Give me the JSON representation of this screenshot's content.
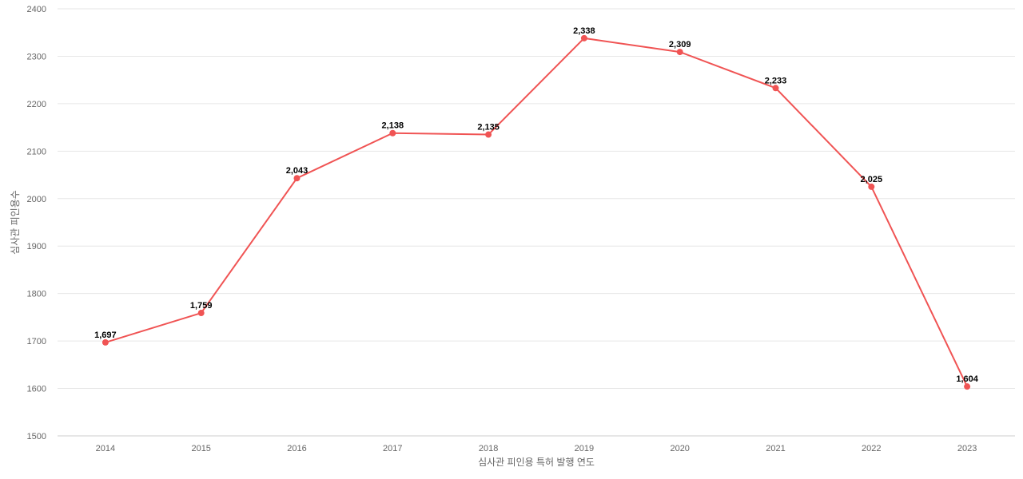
{
  "chart_data": {
    "type": "line",
    "title": "",
    "xlabel": "심사관 피인용 특허 발행 연도",
    "ylabel": "심사관 피인용수",
    "x": [
      "2014",
      "2015",
      "2016",
      "2017",
      "2018",
      "2019",
      "2020",
      "2021",
      "2022",
      "2023"
    ],
    "series": [
      {
        "values": [
          1697,
          1759,
          2043,
          2138,
          2135,
          2338,
          2309,
          2233,
          2025,
          1604
        ],
        "labels": [
          "1,697",
          "1,759",
          "2,043",
          "2,138",
          "2,135",
          "2,338",
          "2,309",
          "2,233",
          "2,025",
          "1,604"
        ],
        "color": "#f05454"
      }
    ],
    "ylim": [
      1500,
      2400
    ],
    "yticks": [
      1500,
      1600,
      1700,
      1800,
      1900,
      2000,
      2100,
      2200,
      2300,
      2400
    ],
    "ytick_labels": [
      "1500",
      "1600",
      "1700",
      "1800",
      "1900",
      "2000",
      "2100",
      "2200",
      "2300",
      "2400"
    ],
    "grid": true,
    "legend": "none"
  }
}
